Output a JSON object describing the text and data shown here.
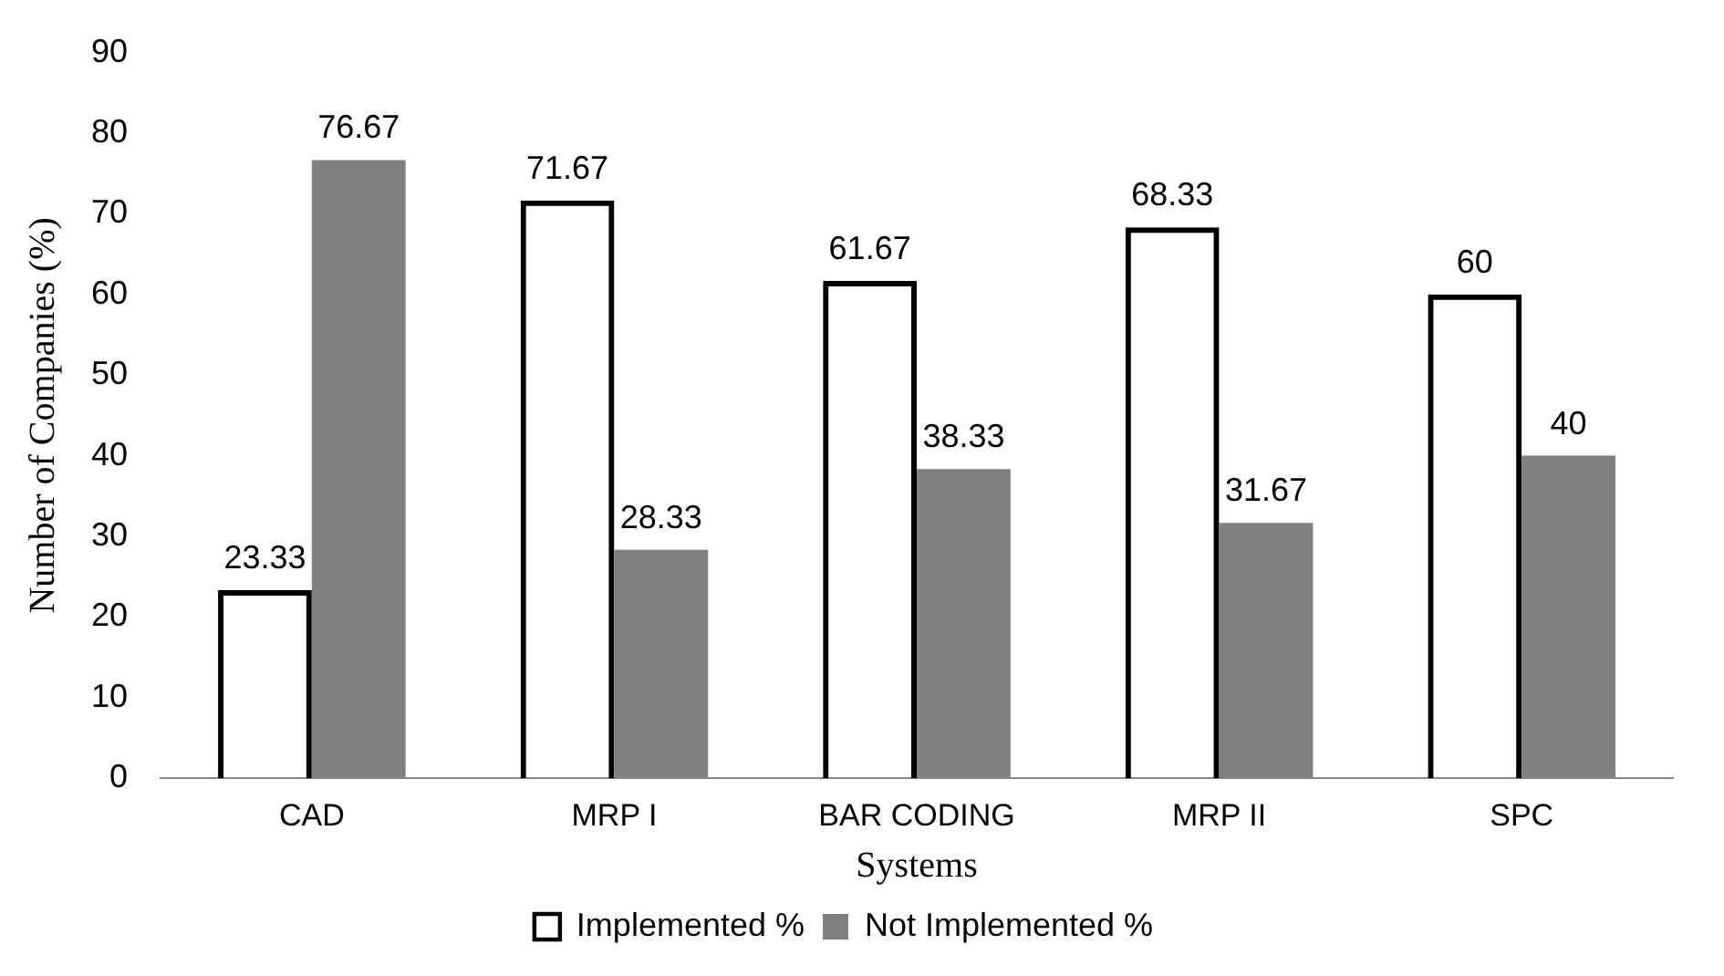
{
  "chart_data": {
    "type": "bar",
    "xlabel": "Systems",
    "ylabel": "Number of Companies (%)",
    "categories": [
      "CAD",
      "MRP I",
      "BAR CODING",
      "MRP II",
      "SPC"
    ],
    "series": [
      {
        "name": "Implemented %",
        "color": "#000000",
        "values": [
          23.33,
          71.67,
          61.67,
          68.33,
          60
        ]
      },
      {
        "name": "Not Implemented %",
        "color": "#808080",
        "values": [
          76.67,
          28.33,
          38.33,
          31.67,
          40
        ]
      }
    ],
    "ylim": [
      0,
      90
    ],
    "yticks": [
      0,
      10,
      20,
      30,
      40,
      50,
      60,
      70,
      80,
      90
    ],
    "grid": false,
    "legend": "bottom",
    "data_labels": true
  }
}
